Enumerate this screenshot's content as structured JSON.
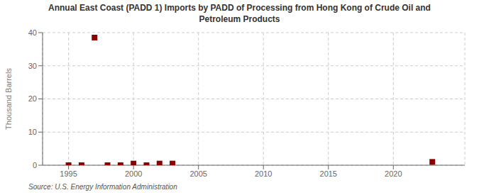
{
  "chart_data": {
    "type": "scatter",
    "title": "Annual East Coast (PADD 1) Imports by PADD of Processing from Hong Kong of Crude Oil and\nPetroleum Products",
    "ylabel": "Thousand Barrels",
    "annotations": [
      "Source: U.S. Energy Information Administration"
    ],
    "x": [
      1995,
      1996,
      1997,
      1998,
      1999,
      2000,
      2001,
      2002,
      2003,
      2023
    ],
    "values": [
      0,
      0,
      38.5,
      0,
      0,
      0.5,
      0,
      0.5,
      0.5,
      1.0
    ],
    "color": "#8b0000",
    "marker": "square",
    "xlim": [
      1993.0,
      2025.5
    ],
    "ylim": [
      0,
      40
    ],
    "xticks": [
      1995,
      2000,
      2005,
      2010,
      2015,
      2020
    ],
    "yticks": [
      0,
      10,
      20,
      30,
      40
    ],
    "grid": true
  }
}
